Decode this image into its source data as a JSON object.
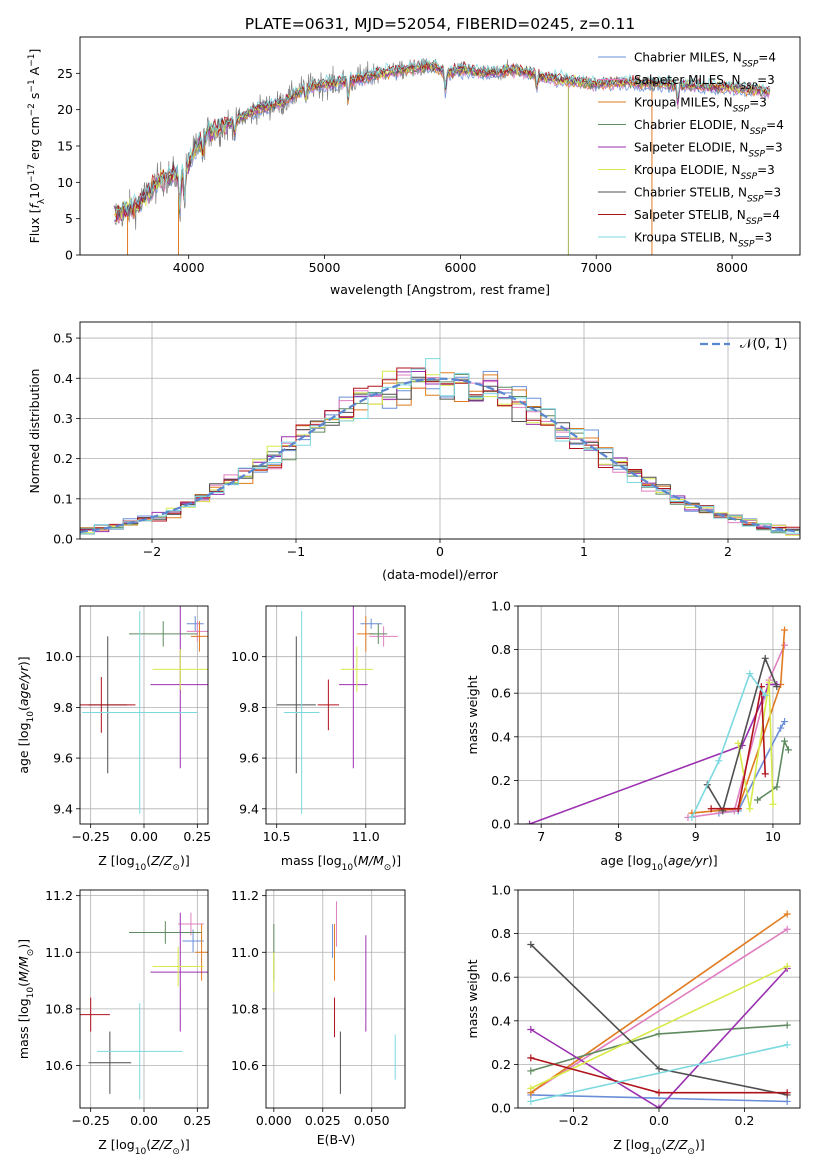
{
  "figure_title": "PLATE=0631, MJD=52054, FIBERID=0245, z=0.11",
  "colors": {
    "cmiles": "#6a8fd8",
    "smiles": "#e07fc0",
    "kmiles": "#e07b1f",
    "celodie": "#5f8a5f",
    "selodie": "#9b30b0",
    "kelodie": "#d8ea4a",
    "cstelib": "#4f4f4f",
    "sstelib": "#b0121b",
    "kstelib": "#7dd9e0",
    "data": "#808080",
    "grid": "#b0b0b0",
    "normal": "#5b86d0"
  },
  "legend_spectrum": [
    {
      "key": "cmiles",
      "label": "Chabrier MILES, N",
      "sub": "SSP",
      "tail": "=4"
    },
    {
      "key": "smiles",
      "label": "Salpeter MILES, N",
      "sub": "SSP",
      "tail": "=3"
    },
    {
      "key": "kmiles",
      "label": "Kroupa MILES, N",
      "sub": "SSP",
      "tail": "=3"
    },
    {
      "key": "celodie",
      "label": "Chabrier ELODIE, N",
      "sub": "SSP",
      "tail": "=4"
    },
    {
      "key": "selodie",
      "label": "Salpeter ELODIE, N",
      "sub": "SSP",
      "tail": "=3"
    },
    {
      "key": "kelodie",
      "label": "Kroupa ELODIE, N",
      "sub": "SSP",
      "tail": "=3"
    },
    {
      "key": "cstelib",
      "label": "Chabrier STELIB, N",
      "sub": "SSP",
      "tail": "=3"
    },
    {
      "key": "sstelib",
      "label": "Salpeter STELIB, N",
      "sub": "SSP",
      "tail": "=4"
    },
    {
      "key": "kstelib",
      "label": "Kroupa STELIB, N",
      "sub": "SSP",
      "tail": "=3"
    }
  ],
  "legend_hist": {
    "label": "𝒩(0, 1)"
  },
  "chart_data": [
    {
      "id": "spectrum",
      "type": "line",
      "title": "PLATE=0631, MJD=52054, FIBERID=0245, z=0.11",
      "xlabel": "wavelength [Angstrom, rest frame]",
      "ylabel": "Flux [f_λ 10^-17 erg cm^-2 s^-1 A^-1]",
      "xlim": [
        3200,
        8500
      ],
      "ylim": [
        0,
        30
      ],
      "xticks": [
        4000,
        5000,
        6000,
        7000,
        8000
      ],
      "yticks": [
        0,
        5,
        10,
        15,
        20,
        25
      ],
      "continuum_nodes": {
        "x": [
          3450,
          3600,
          3700,
          3800,
          3900,
          3950,
          4050,
          4150,
          4300,
          4500,
          4700,
          4850,
          5000,
          5200,
          5400,
          5600,
          5800,
          5900,
          6000,
          6200,
          6400,
          6600,
          6800,
          7000,
          7200,
          7500,
          7800,
          8000,
          8280
        ],
        "y": [
          5.5,
          6.5,
          8.5,
          10.5,
          11.0,
          10.8,
          14.5,
          17.0,
          18.0,
          20.0,
          21.0,
          23.0,
          23.5,
          24.0,
          25.0,
          25.5,
          26.0,
          25.0,
          25.5,
          25.0,
          25.5,
          24.5,
          24.0,
          23.5,
          23.8,
          23.5,
          23.2,
          23.0,
          22.5
        ]
      },
      "grid": false,
      "legend_position": "right"
    },
    {
      "id": "histogram",
      "type": "bar",
      "xlabel": "(data-model)/error",
      "ylabel": "Normed distribution",
      "xlim": [
        -2.5,
        2.5
      ],
      "ylim": [
        0,
        0.54
      ],
      "xticks": [
        -2,
        -1,
        0,
        1,
        2
      ],
      "yticks": [
        0.0,
        0.1,
        0.2,
        0.3,
        0.4,
        0.5
      ],
      "bin_width": 0.1,
      "normal_curve": {
        "mean": 0,
        "sigma": 1,
        "style": "dashed"
      },
      "grid": true,
      "legend_position": "top-right"
    },
    {
      "id": "age_vs_Z",
      "type": "scatter",
      "xlabel": "Z [log10(Z/Z⊙)]",
      "ylabel": "age  [log10(age/yr)]",
      "xlim": [
        -0.3,
        0.3
      ],
      "ylim": [
        9.34,
        10.2
      ],
      "xticks": [
        -0.25,
        0.0,
        0.25
      ],
      "yticks": [
        9.4,
        9.6,
        9.8,
        10.0
      ],
      "points": [
        {
          "key": "cmiles",
          "x": 0.24,
          "xerr": 0.04,
          "y": 10.13,
          "yerr": 0.03
        },
        {
          "key": "smiles",
          "x": 0.25,
          "xerr": 0.05,
          "y": 10.1,
          "yerr": 0.04
        },
        {
          "key": "kmiles",
          "x": 0.26,
          "xerr": 0.04,
          "y": 10.08,
          "yerr": 0.06
        },
        {
          "key": "celodie",
          "x": 0.09,
          "xerr": 0.16,
          "y": 10.09,
          "yerr": 0.05
        },
        {
          "key": "selodie",
          "x": 0.17,
          "xerr": 0.14,
          "y": 9.89,
          "yerr": 0.33
        },
        {
          "key": "kelodie",
          "x": 0.17,
          "xerr": 0.13,
          "y": 9.95,
          "yerr": 0.08
        },
        {
          "key": "cstelib",
          "x": -0.17,
          "xerr": 0.09,
          "y": 9.81,
          "yerr": 0.27
        },
        {
          "key": "sstelib",
          "x": -0.2,
          "xerr": 0.16,
          "y": 9.81,
          "yerr": 0.11
        },
        {
          "key": "kstelib",
          "x": -0.02,
          "xerr": 0.27,
          "y": 9.78,
          "yerr": 0.4
        }
      ]
    },
    {
      "id": "age_vs_mass",
      "type": "scatter",
      "xlabel": "mass [log10(M/M⊙)]",
      "ylabel": "",
      "xlim": [
        10.44,
        11.22
      ],
      "ylim": [
        9.34,
        10.2
      ],
      "xticks": [
        10.5,
        11.0
      ],
      "yticks": [
        9.4,
        9.6,
        9.8,
        10.0
      ],
      "points": [
        {
          "key": "cmiles",
          "x": 11.03,
          "xerr": 0.06,
          "y": 10.13,
          "yerr": 0.02
        },
        {
          "key": "smiles",
          "x": 11.1,
          "xerr": 0.08,
          "y": 10.08,
          "yerr": 0.04
        },
        {
          "key": "kmiles",
          "x": 11.0,
          "xerr": 0.05,
          "y": 10.09,
          "yerr": 0.07
        },
        {
          "key": "celodie",
          "x": 11.07,
          "xerr": 0.05,
          "y": 10.09,
          "yerr": 0.04
        },
        {
          "key": "selodie",
          "x": 10.93,
          "xerr": 0.08,
          "y": 9.89,
          "yerr": 0.33
        },
        {
          "key": "kelodie",
          "x": 10.95,
          "xerr": 0.09,
          "y": 9.95,
          "yerr": 0.09
        },
        {
          "key": "cstelib",
          "x": 10.61,
          "xerr": 0.11,
          "y": 9.81,
          "yerr": 0.27
        },
        {
          "key": "sstelib",
          "x": 10.79,
          "xerr": 0.06,
          "y": 9.81,
          "yerr": 0.1
        },
        {
          "key": "kstelib",
          "x": 10.64,
          "xerr": 0.1,
          "y": 9.78,
          "yerr": 0.4
        }
      ]
    },
    {
      "id": "massweight_vs_age",
      "type": "line",
      "xlabel": "age  [log10(age/yr)]",
      "ylabel": "mass weight",
      "xlim": [
        6.7,
        10.35
      ],
      "ylim": [
        0,
        1
      ],
      "xticks": [
        7,
        8,
        9,
        10
      ],
      "yticks": [
        0.0,
        0.2,
        0.4,
        0.6,
        0.8,
        1.0
      ],
      "series": [
        {
          "key": "cmiles",
          "x": [
            9.3,
            9.55,
            10.1,
            10.15
          ],
          "y": [
            0.05,
            0.06,
            0.44,
            0.47
          ]
        },
        {
          "key": "smiles",
          "x": [
            8.9,
            9.5,
            9.95,
            10.15
          ],
          "y": [
            0.03,
            0.06,
            0.66,
            0.82
          ]
        },
        {
          "key": "kmiles",
          "x": [
            8.95,
            9.55,
            10.1,
            10.15
          ],
          "y": [
            0.05,
            0.07,
            0.64,
            0.89
          ]
        },
        {
          "key": "celodie",
          "x": [
            9.8,
            10.05,
            10.15,
            10.2
          ],
          "y": [
            0.11,
            0.17,
            0.38,
            0.34
          ]
        },
        {
          "key": "selodie",
          "x": [
            6.85,
            9.6,
            9.95,
            10.05
          ],
          "y": [
            0.0,
            0.36,
            0.64,
            0.64
          ]
        },
        {
          "key": "kelodie",
          "x": [
            9.55,
            9.7,
            9.95,
            10.0
          ],
          "y": [
            0.37,
            0.07,
            0.65,
            0.09
          ]
        },
        {
          "key": "cstelib",
          "x": [
            9.15,
            9.35,
            9.9,
            10.05
          ],
          "y": [
            0.18,
            0.06,
            0.76,
            0.63
          ]
        },
        {
          "key": "sstelib",
          "x": [
            9.2,
            9.55,
            9.85,
            9.9
          ],
          "y": [
            0.07,
            0.07,
            0.63,
            0.23
          ]
        },
        {
          "key": "kstelib",
          "x": [
            8.95,
            9.3,
            9.7,
            9.9
          ],
          "y": [
            0.03,
            0.29,
            0.69,
            0.59
          ]
        }
      ]
    },
    {
      "id": "mass_vs_Z",
      "type": "scatter",
      "xlabel": "Z [log10(Z/Z⊙)]",
      "ylabel": "mass [log10(M/M⊙)]",
      "xlim": [
        -0.3,
        0.3
      ],
      "ylim": [
        10.45,
        11.22
      ],
      "xticks": [
        -0.25,
        0.0,
        0.25
      ],
      "yticks": [
        10.6,
        10.8,
        11.0,
        11.2
      ],
      "points": [
        {
          "key": "cmiles",
          "x": 0.23,
          "xerr": 0.05,
          "y": 11.04,
          "yerr": 0.04
        },
        {
          "key": "smiles",
          "x": 0.22,
          "xerr": 0.06,
          "y": 11.1,
          "yerr": 0.04
        },
        {
          "key": "kmiles",
          "x": 0.27,
          "xerr": 0.03,
          "y": 11.0,
          "yerr": 0.1
        },
        {
          "key": "celodie",
          "x": 0.1,
          "xerr": 0.17,
          "y": 11.07,
          "yerr": 0.04
        },
        {
          "key": "selodie",
          "x": 0.17,
          "xerr": 0.14,
          "y": 10.93,
          "yerr": 0.21
        },
        {
          "key": "kelodie",
          "x": 0.16,
          "xerr": 0.12,
          "y": 10.95,
          "yerr": 0.07
        },
        {
          "key": "cstelib",
          "x": -0.16,
          "xerr": 0.1,
          "y": 10.61,
          "yerr": 0.11
        },
        {
          "key": "sstelib",
          "x": -0.25,
          "xerr": 0.09,
          "y": 10.78,
          "yerr": 0.06
        },
        {
          "key": "kstelib",
          "x": -0.02,
          "xerr": 0.2,
          "y": 10.65,
          "yerr": 0.17
        }
      ]
    },
    {
      "id": "mass_vs_EBV",
      "type": "scatter",
      "xlabel": "E(B-V)",
      "ylabel": "",
      "xlim": [
        -0.004,
        0.067
      ],
      "ylim": [
        10.45,
        11.22
      ],
      "xticks": [
        0.0,
        0.025,
        0.05
      ],
      "yticks": [
        10.6,
        10.8,
        11.0,
        11.2
      ],
      "points": [
        {
          "key": "cmiles",
          "x": 0.03,
          "xerr": 0.0,
          "y": 11.04,
          "yerr": 0.06
        },
        {
          "key": "smiles",
          "x": 0.032,
          "xerr": 0.0,
          "y": 11.1,
          "yerr": 0.08
        },
        {
          "key": "kmiles",
          "x": 0.031,
          "xerr": 0.0,
          "y": 11.0,
          "yerr": 0.1
        },
        {
          "key": "celodie",
          "x": 0.0,
          "xerr": 0.0,
          "y": 11.0,
          "yerr": 0.1
        },
        {
          "key": "selodie",
          "x": 0.047,
          "xerr": 0.0,
          "y": 10.89,
          "yerr": 0.17
        },
        {
          "key": "kelodie",
          "x": 0.0,
          "xerr": 0.0,
          "y": 10.93,
          "yerr": 0.07
        },
        {
          "key": "cstelib",
          "x": 0.034,
          "xerr": 0.0,
          "y": 10.61,
          "yerr": 0.11
        },
        {
          "key": "sstelib",
          "x": 0.031,
          "xerr": 0.0,
          "y": 10.77,
          "yerr": 0.07
        },
        {
          "key": "kstelib",
          "x": 0.062,
          "xerr": 0.0,
          "y": 10.63,
          "yerr": 0.08
        }
      ]
    },
    {
      "id": "massweight_vs_Z",
      "type": "line",
      "xlabel": "Z [log10(Z/Z⊙)]",
      "ylabel": "mass weight",
      "xlim": [
        -0.33,
        0.33
      ],
      "ylim": [
        0,
        1
      ],
      "xticks": [
        -0.2,
        0.0,
        0.2
      ],
      "yticks": [
        0.0,
        0.2,
        0.4,
        0.6,
        0.8,
        1.0
      ],
      "series": [
        {
          "key": "cmiles",
          "x": [
            -0.3,
            0.3
          ],
          "y": [
            0.06,
            0.03
          ]
        },
        {
          "key": "smiles",
          "x": [
            -0.3,
            0.3
          ],
          "y": [
            0.07,
            0.82
          ]
        },
        {
          "key": "kmiles",
          "x": [
            -0.3,
            0.3
          ],
          "y": [
            0.07,
            0.89
          ]
        },
        {
          "key": "celodie",
          "x": [
            -0.3,
            0.0,
            0.3
          ],
          "y": [
            0.17,
            0.34,
            0.38
          ]
        },
        {
          "key": "selodie",
          "x": [
            -0.3,
            0.0,
            0.3
          ],
          "y": [
            0.36,
            0.0,
            0.64
          ]
        },
        {
          "key": "kelodie",
          "x": [
            -0.3,
            0.3
          ],
          "y": [
            0.09,
            0.65
          ]
        },
        {
          "key": "cstelib",
          "x": [
            -0.3,
            0.0,
            0.3
          ],
          "y": [
            0.75,
            0.18,
            0.06
          ]
        },
        {
          "key": "sstelib",
          "x": [
            -0.3,
            0.0,
            0.3
          ],
          "y": [
            0.23,
            0.07,
            0.07
          ]
        },
        {
          "key": "kstelib",
          "x": [
            -0.3,
            0.3
          ],
          "y": [
            0.03,
            0.29
          ]
        }
      ]
    }
  ]
}
